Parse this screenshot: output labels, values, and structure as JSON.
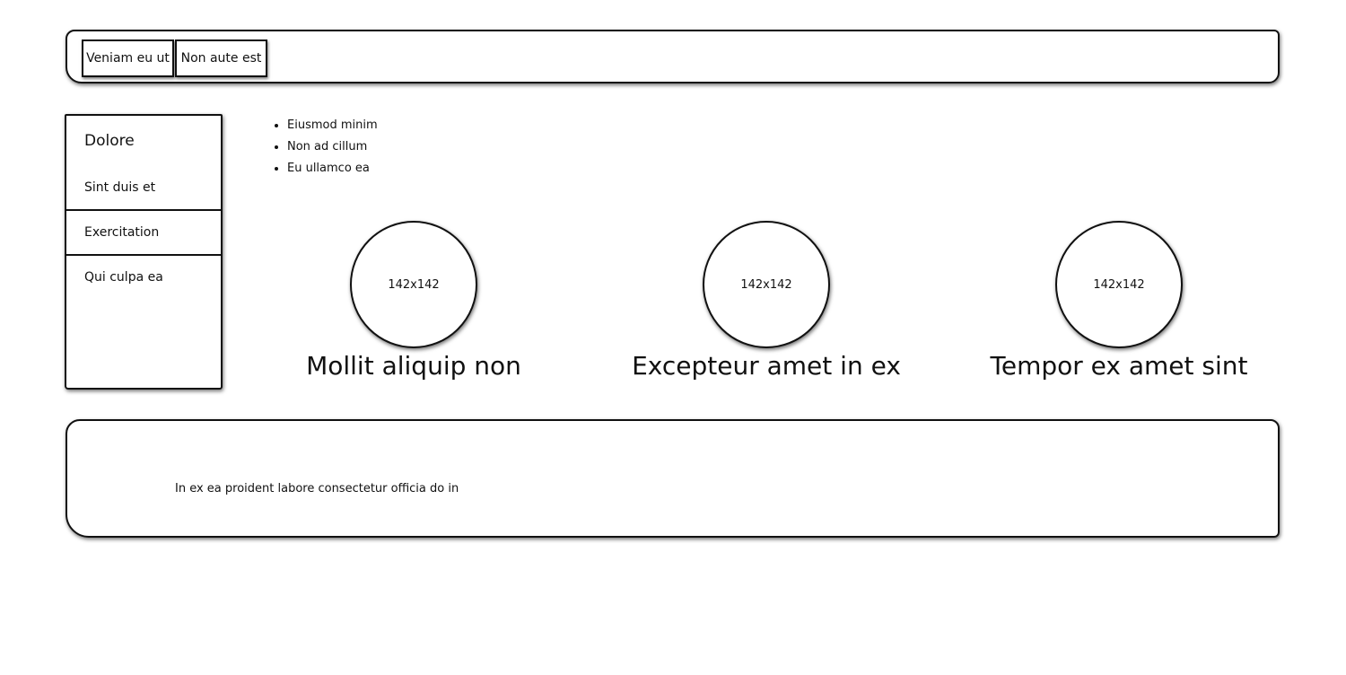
{
  "header": {
    "tabs": [
      {
        "label": "Veniam eu ut"
      },
      {
        "label": "Non aute est"
      }
    ]
  },
  "sidebar": {
    "title": "Dolore",
    "items": [
      {
        "label": "Sint duis et"
      },
      {
        "label": "Exercitation"
      },
      {
        "label": "Qui culpa ea"
      }
    ]
  },
  "bullets": [
    "Eiusmod minim",
    "Non ad cillum",
    "Eu ullamco ea"
  ],
  "cards": [
    {
      "image_label": "142x142",
      "title": "Mollit aliquip non"
    },
    {
      "image_label": "142x142",
      "title": "Excepteur amet in ex"
    },
    {
      "image_label": "142x142",
      "title": "Tempor ex amet sint"
    }
  ],
  "footer": {
    "text": "In ex ea proident labore consectetur officia do in"
  }
}
